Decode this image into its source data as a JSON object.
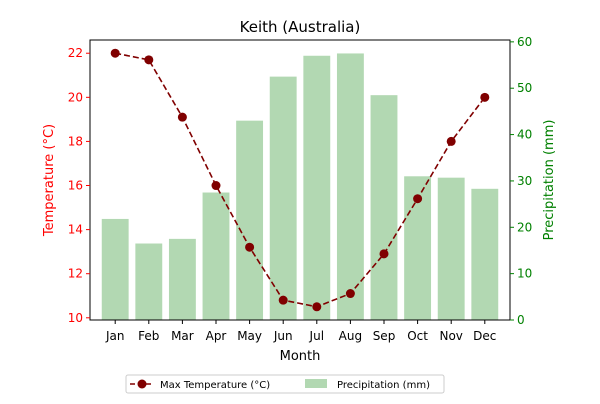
{
  "chart_data": {
    "type": "bar",
    "title": "Keith (Australia)",
    "xlabel": "Month",
    "categories": [
      "Jan",
      "Feb",
      "Mar",
      "Apr",
      "May",
      "Jun",
      "Jul",
      "Aug",
      "Sep",
      "Oct",
      "Nov",
      "Dec"
    ],
    "series": [
      {
        "name": "Max Temperature (°C)",
        "type": "line",
        "axis": "left",
        "color": "#800000",
        "line_style": "dashed",
        "marker": "circle",
        "values": [
          22.0,
          21.7,
          19.1,
          16.0,
          13.2,
          10.8,
          10.5,
          11.1,
          12.9,
          15.4,
          18.0,
          20.0
        ]
      },
      {
        "name": "Precipitation (mm)",
        "type": "bar",
        "axis": "right",
        "color": "#b2d8b2",
        "values": [
          21.8,
          16.5,
          17.5,
          27.5,
          43.0,
          52.5,
          57.0,
          57.5,
          48.5,
          31.0,
          30.7,
          28.3
        ]
      }
    ],
    "y_left": {
      "label": "Temperature (°C)",
      "color": "#ff0000",
      "ylim": [
        9.9,
        22.6
      ],
      "ticks": [
        10,
        12,
        14,
        16,
        18,
        20,
        22
      ]
    },
    "y_right": {
      "label": "Precipitation (mm)",
      "color": "#008000",
      "ylim": [
        0,
        60.4
      ],
      "ticks": [
        0,
        10,
        20,
        30,
        40,
        50,
        60
      ]
    },
    "grid": false,
    "legend": {
      "position": "bottom-center",
      "ncol": 2
    }
  }
}
